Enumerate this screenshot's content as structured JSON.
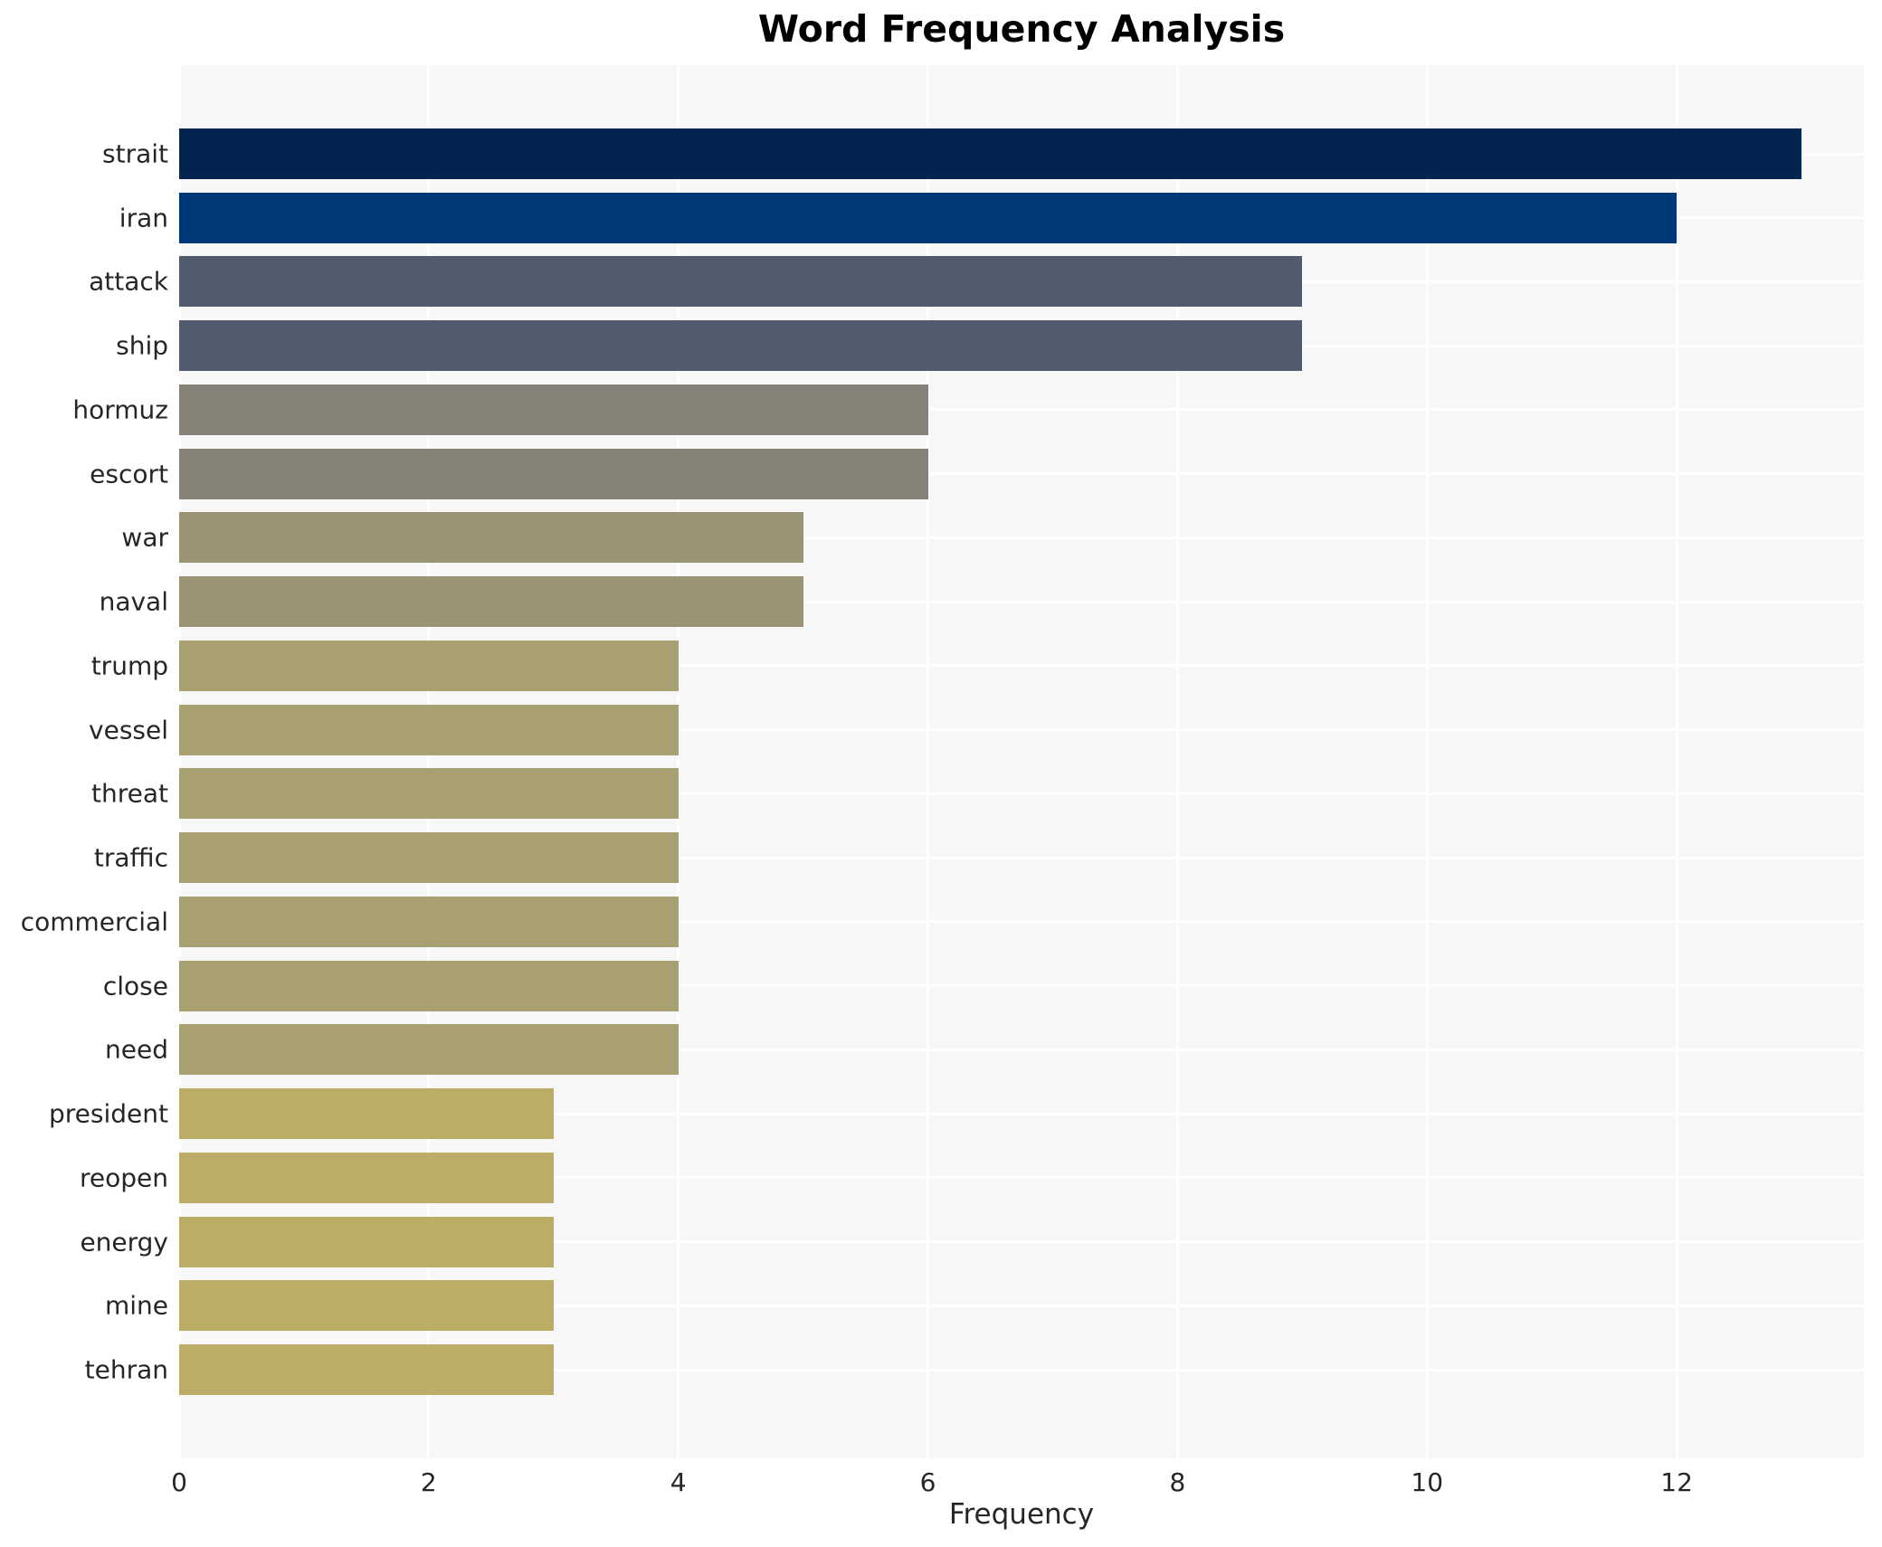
{
  "chart_data": {
    "type": "bar",
    "orientation": "horizontal",
    "title": "Word Frequency Analysis",
    "xlabel": "Frequency",
    "ylabel": "",
    "xlim": [
      0,
      13.5
    ],
    "xticks": [
      0,
      2,
      4,
      6,
      8,
      10,
      12
    ],
    "grid": "both, white gridlines on light gray plot background",
    "legend": "none",
    "categories": [
      "strait",
      "iran",
      "attack",
      "ship",
      "hormuz",
      "escort",
      "war",
      "naval",
      "trump",
      "vessel",
      "threat",
      "traffic",
      "commercial",
      "close",
      "need",
      "president",
      "reopen",
      "energy",
      "mine",
      "tehran"
    ],
    "values": [
      13,
      12,
      9,
      9,
      6,
      6,
      5,
      5,
      4,
      4,
      4,
      4,
      4,
      4,
      4,
      3,
      3,
      3,
      3,
      3
    ],
    "bar_colors": [
      "#02244e",
      "#003777",
      "#525a6e",
      "#525a6e",
      "#858176",
      "#858176",
      "#9a9374",
      "#9a9374",
      "#a9a072",
      "#a9a072",
      "#a9a072",
      "#a9a072",
      "#a9a072",
      "#a9a072",
      "#a9a072",
      "#bcad66",
      "#bcad66",
      "#bcad66",
      "#bcad66",
      "#bcad66"
    ]
  },
  "colors": {
    "figure_bg": "#ffffff",
    "plot_bg": "#f7f7f7",
    "grid": "#ffffff",
    "title_color": "#000000",
    "tick_label_color": "#262626"
  }
}
